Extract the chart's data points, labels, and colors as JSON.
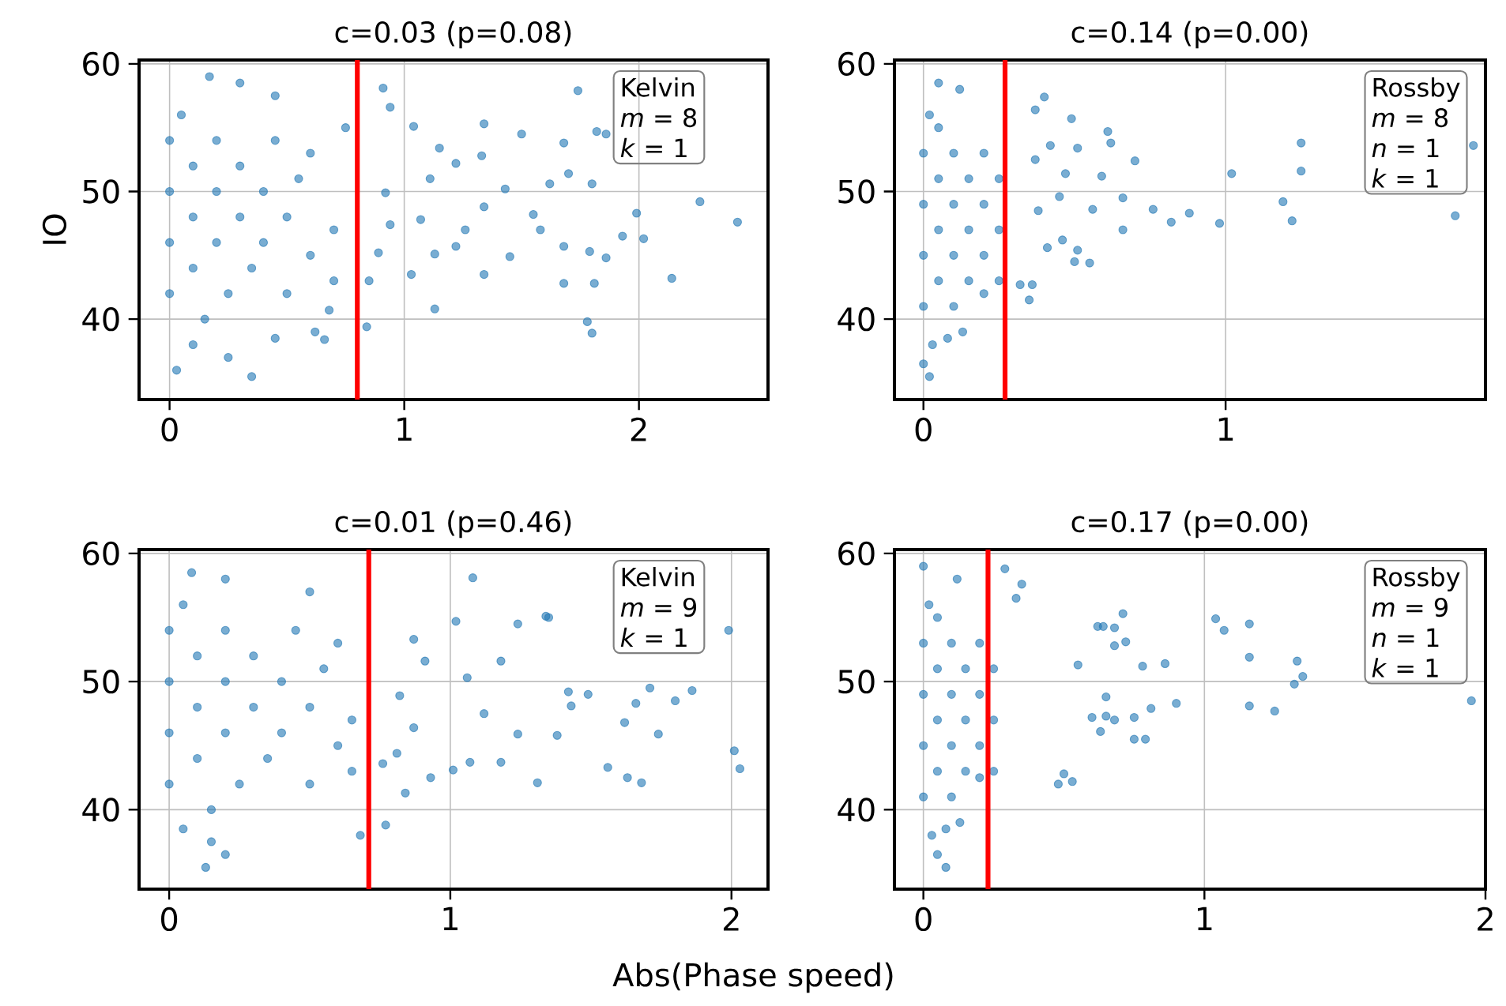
{
  "chart_data": [
    {
      "type": "scatter",
      "title": "c=0.03 (p=0.08)",
      "ylabel": "IO",
      "xlim": [
        -0.13,
        2.55
      ],
      "ylim": [
        33.7,
        60.3
      ],
      "xticks": [
        0,
        1,
        2
      ],
      "yticks": [
        40,
        50,
        60
      ],
      "grid": true,
      "marker": "circle",
      "series": [
        {
          "color": "#1f77b4",
          "x": [
            0.0,
            0.0,
            0.0,
            0.0,
            0.05,
            0.1,
            0.1,
            0.1,
            0.15,
            0.2,
            0.2,
            0.2,
            0.25,
            0.3,
            0.3,
            0.35,
            0.4,
            0.4,
            0.45,
            0.5,
            0.5,
            0.55,
            0.6,
            0.6,
            0.7,
            0.7,
            0.75,
            0.03,
            0.35,
            0.25,
            0.1,
            0.45,
            0.17,
            0.3,
            0.45,
            0.91,
            1.74,
            2.26,
            2.42,
            2.14,
            1.8,
            1.78,
            1.99,
            2.02,
            1.93,
            1.86,
            1.82,
            1.34,
            1.5,
            1.68,
            1.7,
            1.62,
            1.8,
            1.43,
            1.34,
            1.55,
            1.58,
            1.68,
            1.79,
            1.86,
            1.68,
            1.81,
            1.45,
            1.34,
            1.13,
            1.03,
            1.13,
            1.22,
            1.26,
            1.11,
            1.15,
            1.04,
            1.22,
            1.33,
            0.84,
            0.94,
            0.92,
            0.94,
            0.89,
            0.85,
            1.07,
            0.66,
            0.62,
            0.68
          ],
          "values": [
            42,
            46,
            50,
            54,
            56,
            44,
            48,
            52,
            40,
            46,
            50,
            54,
            42,
            48,
            52,
            44,
            50,
            46,
            54,
            48,
            42,
            51,
            45,
            53,
            47,
            43,
            55,
            36,
            35.5,
            37,
            38,
            38.5,
            59,
            58.5,
            57.5,
            58.1,
            57.9,
            49.2,
            47.6,
            43.2,
            38.9,
            39.8,
            48.3,
            46.3,
            46.5,
            54.5,
            54.7,
            55.3,
            54.5,
            53.8,
            51.4,
            50.6,
            50.6,
            50.2,
            48.8,
            48.2,
            47.0,
            45.7,
            45.3,
            44.8,
            42.8,
            42.8,
            44.9,
            43.5,
            40.8,
            43.5,
            45.1,
            45.7,
            47.0,
            51.0,
            53.4,
            55.1,
            52.2,
            52.8,
            39.4,
            56.6,
            49.9,
            47.4,
            45.2,
            43.0,
            47.8,
            38.4,
            39.0,
            40.7
          ]
        }
      ],
      "ref_lines": [
        {
          "axis": "x",
          "value": 0.8,
          "color": "#ff0000"
        }
      ],
      "annotations": [
        "Kelvin",
        "*m* = 8",
        "*k* = 1"
      ]
    },
    {
      "type": "scatter",
      "title": "c=0.14 (p=0.00)",
      "xlim": [
        -0.096,
        1.86
      ],
      "ylim": [
        33.7,
        60.3
      ],
      "xticks": [
        0,
        1
      ],
      "yticks": [
        40,
        50,
        60
      ],
      "grid": true,
      "marker": "circle",
      "series": [
        {
          "color": "#1f77b4",
          "x": [
            0.0,
            0.0,
            0.0,
            0.0,
            0.02,
            0.05,
            0.05,
            0.05,
            0.05,
            0.1,
            0.1,
            0.1,
            0.1,
            0.15,
            0.15,
            0.15,
            0.2,
            0.2,
            0.2,
            0.25,
            0.25,
            0.25,
            0.03,
            0.08,
            0.0,
            0.02,
            0.13,
            0.05,
            0.12,
            0.2,
            0.4,
            0.37,
            0.49,
            0.61,
            0.62,
            0.7,
            0.59,
            1.02,
            1.25,
            1.25,
            1.82,
            1.76,
            1.19,
            1.22,
            0.98,
            0.88,
            0.82,
            0.76,
            0.66,
            0.66,
            0.56,
            0.51,
            0.55,
            0.5,
            0.46,
            0.41,
            0.35,
            0.32,
            0.36,
            0.45,
            0.51,
            0.47,
            0.42,
            0.37,
            0.38
          ],
          "values": [
            41,
            45,
            49,
            53,
            56,
            43,
            47,
            51,
            55,
            41,
            45,
            49,
            53,
            43,
            47,
            51,
            45,
            49,
            53,
            47,
            51,
            43,
            38,
            38.5,
            36.5,
            35.5,
            39,
            58.5,
            58,
            42,
            57.4,
            56.4,
            55.7,
            54.7,
            53.8,
            52.4,
            51.2,
            51.4,
            53.8,
            51.6,
            53.6,
            48.1,
            49.2,
            47.7,
            47.5,
            48.3,
            47.6,
            48.6,
            49.5,
            47.0,
            48.6,
            45.4,
            44.4,
            44.5,
            46.2,
            45.6,
            41.5,
            42.7,
            42.7,
            49.6,
            53.4,
            51.4,
            53.6,
            52.5,
            48.5
          ]
        }
      ],
      "ref_lines": [
        {
          "axis": "x",
          "value": 0.27,
          "color": "#ff0000"
        }
      ],
      "annotations": [
        "Rossby",
        "*m* = 8",
        "*n* = 1",
        "*k* = 1"
      ]
    },
    {
      "type": "scatter",
      "title": "c=0.01 (p=0.46)",
      "xlabel": "Abs(Phase speed)",
      "xlim": [
        -0.107,
        2.13
      ],
      "ylim": [
        33.8,
        60.3
      ],
      "xticks": [
        0,
        1,
        2
      ],
      "yticks": [
        40,
        50,
        60
      ],
      "grid": true,
      "marker": "circle",
      "series": [
        {
          "color": "#1f77b4",
          "x": [
            0.0,
            0.0,
            0.0,
            0.0,
            0.05,
            0.1,
            0.1,
            0.1,
            0.15,
            0.2,
            0.2,
            0.2,
            0.25,
            0.3,
            0.3,
            0.35,
            0.4,
            0.4,
            0.45,
            0.5,
            0.5,
            0.55,
            0.6,
            0.6,
            0.65,
            0.65,
            0.05,
            0.15,
            0.13,
            0.2,
            0.08,
            0.2,
            0.5,
            1.08,
            1.02,
            1.24,
            1.34,
            1.35,
            1.99,
            2.01,
            2.03,
            1.86,
            1.71,
            1.66,
            1.8,
            1.68,
            1.63,
            1.56,
            1.62,
            1.74,
            1.49,
            1.42,
            1.43,
            1.38,
            1.31,
            1.18,
            1.07,
            1.01,
            0.93,
            0.84,
            0.77,
            0.68,
            1.12,
            1.24,
            1.06,
            1.18,
            0.91,
            0.87,
            0.82,
            0.87,
            0.76,
            0.81
          ],
          "values": [
            42,
            46,
            50,
            54,
            56,
            44,
            48,
            52,
            40,
            46,
            50,
            54,
            42,
            48,
            52,
            44,
            50,
            46,
            54,
            48,
            42,
            51,
            45,
            53,
            47,
            43,
            38.5,
            37.5,
            35.5,
            36.5,
            58.5,
            58,
            57,
            58.1,
            54.7,
            54.5,
            55.1,
            55.0,
            54.0,
            44.6,
            43.2,
            49.3,
            49.5,
            48.3,
            48.5,
            42.1,
            42.5,
            43.3,
            46.8,
            45.9,
            49.0,
            49.2,
            48.1,
            45.8,
            42.1,
            43.7,
            43.7,
            43.1,
            42.5,
            41.3,
            38.8,
            38.0,
            47.5,
            45.9,
            50.3,
            51.6,
            51.6,
            53.3,
            48.9,
            46.4,
            43.6,
            44.4
          ]
        }
      ],
      "ref_lines": [
        {
          "axis": "x",
          "value": 0.71,
          "color": "#ff0000"
        }
      ],
      "annotations": [
        "Kelvin",
        "*m* = 9",
        "*k* = 1"
      ]
    },
    {
      "type": "scatter",
      "title": "c=0.17 (p=0.00)",
      "xlim": [
        -0.103,
        2.0
      ],
      "ylim": [
        33.8,
        60.3
      ],
      "xticks": [
        0,
        1,
        2
      ],
      "yticks": [
        40,
        50,
        60
      ],
      "grid": true,
      "marker": "circle",
      "series": [
        {
          "color": "#1f77b4",
          "x": [
            0.0,
            0.0,
            0.0,
            0.0,
            0.02,
            0.05,
            0.05,
            0.05,
            0.05,
            0.1,
            0.1,
            0.1,
            0.1,
            0.15,
            0.15,
            0.15,
            0.2,
            0.2,
            0.2,
            0.25,
            0.25,
            0.25,
            0.03,
            0.08,
            0.05,
            0.08,
            0.13,
            0.0,
            0.12,
            0.2,
            1.04,
            1.07,
            1.16,
            1.16,
            1.33,
            1.35,
            1.32,
            1.95,
            1.16,
            1.25,
            0.9,
            0.81,
            0.75,
            0.79,
            0.75,
            0.68,
            0.65,
            0.63,
            0.65,
            0.78,
            0.86,
            0.72,
            0.71,
            0.68,
            0.64,
            0.62,
            0.68,
            0.53,
            0.5,
            0.48,
            0.29,
            0.35,
            0.33,
            0.6,
            0.55
          ],
          "values": [
            41,
            45,
            49,
            53,
            56,
            43,
            47,
            51,
            55,
            41,
            45,
            49,
            53,
            43,
            47,
            51,
            45,
            49,
            53,
            47,
            51,
            43,
            38,
            38.5,
            36.5,
            35.5,
            39,
            59,
            58,
            42.5,
            54.9,
            54.0,
            54.5,
            51.9,
            51.6,
            50.4,
            49.8,
            48.5,
            48.1,
            47.7,
            48.3,
            47.9,
            47.2,
            45.5,
            45.5,
            47.0,
            47.3,
            46.1,
            48.8,
            51.2,
            51.4,
            53.1,
            55.3,
            54.2,
            54.3,
            54.3,
            52.8,
            42.2,
            42.8,
            42.0,
            58.8,
            57.6,
            56.5,
            47.2,
            51.3
          ]
        }
      ],
      "ref_lines": [
        {
          "axis": "x",
          "value": 0.23,
          "color": "#ff0000"
        }
      ],
      "annotations": [
        "Rossby",
        "*m* = 9",
        "*n* = 1",
        "*k* = 1"
      ]
    }
  ]
}
